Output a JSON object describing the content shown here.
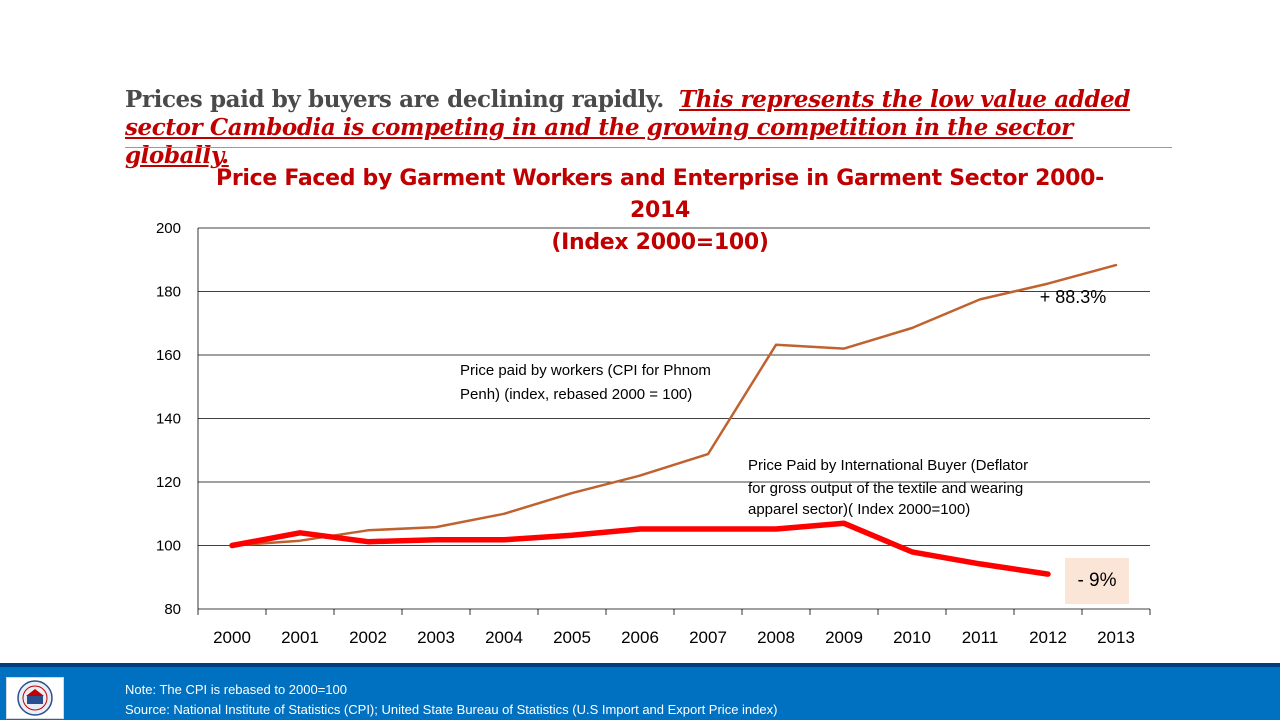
{
  "headline": {
    "lead": "Prices paid by buyers are declining rapidly.",
    "emphasis": "This represents the low value added sector Cambodia is competing in and the growing competition in the sector globally."
  },
  "chart_data": {
    "type": "line",
    "title_line1": "Price Faced by Garment Workers and Enterprise in Garment Sector 2000-2014",
    "title_line2": "(Index 2000=100)",
    "categories": [
      "2000",
      "2001",
      "2002",
      "2003",
      "2004",
      "2005",
      "2006",
      "2007",
      "2008",
      "2009",
      "2010",
      "2011",
      "2012",
      "2013"
    ],
    "ylim": [
      80,
      200
    ],
    "yticks": [
      80,
      100,
      120,
      140,
      160,
      180,
      200
    ],
    "grid": true,
    "series": [
      {
        "name": "Price paid by workers (CPI for Phnom Penh) (index, rebased 2000 = 100)",
        "color": "#c0622f",
        "values": [
          100,
          101.5,
          104.8,
          105.8,
          110,
          116.5,
          122,
          128.8,
          163.2,
          162,
          168.5,
          177.5,
          182.5,
          188.3
        ]
      },
      {
        "name": "Price Paid by International Buyer (Deflator for gross output of the textile and wearing apparel sector)( Index 2000=100)",
        "color": "#ff0000",
        "values": [
          100,
          104,
          101.2,
          101.8,
          101.8,
          103.2,
          105.2,
          105.2,
          105.2,
          107,
          98,
          94.2,
          91,
          null
        ]
      }
    ],
    "annotations": {
      "workers_label_line1": "Price paid by workers (CPI for Phnom",
      "workers_label_line2": "Penh) (index, rebased 2000 = 100)",
      "buyer_label_line1": "Price Paid by International Buyer (Deflator",
      "buyer_label_line2": "for gross output of the textile and wearing",
      "buyer_label_line3": "apparel sector)( Index 2000=100)",
      "workers_change": "+ 88.3%",
      "buyer_change": "- 9%"
    }
  },
  "footer": {
    "note": "Note: The CPI is rebased to 2000=100",
    "source": "Source: National Institute of Statistics (CPI); United State Bureau of Statistics (U.S Import and Export Price index)"
  },
  "colors": {
    "title_red": "#c00000",
    "footer_blue": "#0070c0",
    "callout_bg": "#fbe5d6"
  }
}
